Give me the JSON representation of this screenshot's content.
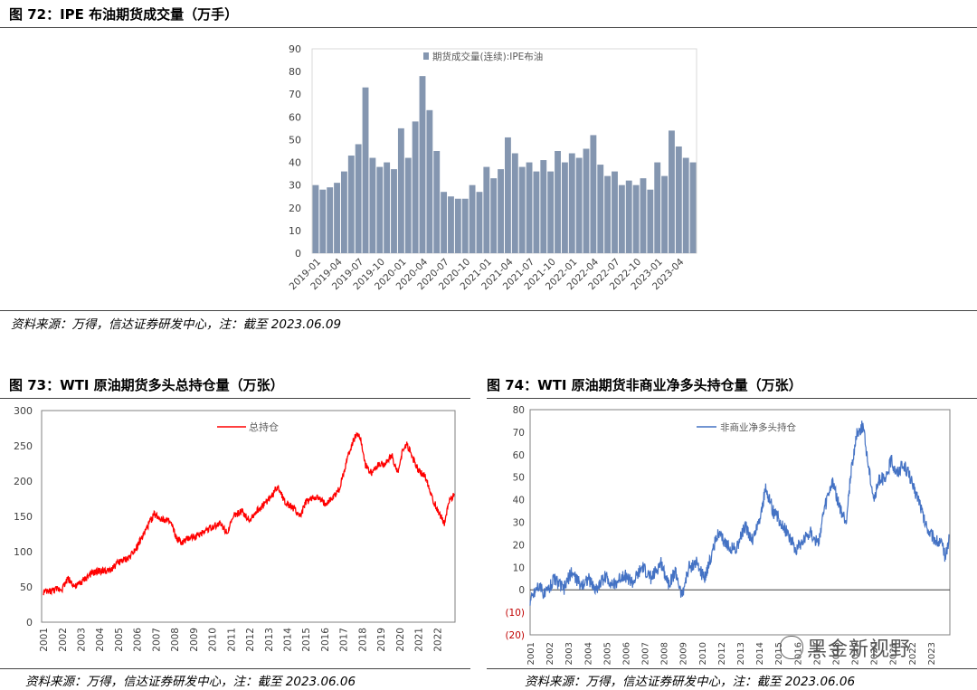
{
  "figures": {
    "fig72": {
      "title": "图 72：IPE 布油期货成交量（万手）",
      "source": "资料来源：万得，信达证券研发中心，注：截至 2023.06.09"
    },
    "fig73": {
      "title": "图 73：WTI 原油期货多头总持仓量（万张）",
      "source": "资料来源：万得，信达证券研发中心，注：截至 2023.06.06"
    },
    "fig74": {
      "title": "图 74：WTI 原油期货非商业净多头持仓量（万张）",
      "source": "资料来源：万得，信达证券研发中心，注：截至 2023.06.06"
    }
  },
  "watermark": "黑金新视野",
  "colors": {
    "bar": "#8496b0",
    "red": "#ff0000",
    "blue": "#4472c4",
    "neg_tick": "#c00000"
  },
  "chart_data": [
    {
      "id": "fig72",
      "type": "bar",
      "title": "",
      "xlabel": "",
      "ylabel": "",
      "ylim": [
        0,
        90
      ],
      "yticks": [
        0,
        10,
        20,
        30,
        40,
        50,
        60,
        70,
        80,
        90
      ],
      "x_tick_labels": [
        "2019-01",
        "2019-04",
        "2019-07",
        "2019-10",
        "2020-01",
        "2020-04",
        "2020-07",
        "2020-10",
        "2021-01",
        "2021-04",
        "2021-07",
        "2021-10",
        "2022-01",
        "2022-04",
        "2022-07",
        "2022-10",
        "2023-01",
        "2023-04"
      ],
      "legend": "top-center",
      "grid": false,
      "series": [
        {
          "name": "期货成交量(连续):IPE布油",
          "x": [
            "2019-01",
            "2019-02",
            "2019-03",
            "2019-04",
            "2019-05",
            "2019-06",
            "2019-07",
            "2019-08",
            "2019-09",
            "2019-10",
            "2019-11",
            "2019-12",
            "2020-01",
            "2020-02",
            "2020-03",
            "2020-04",
            "2020-05",
            "2020-06",
            "2020-07",
            "2020-08",
            "2020-09",
            "2020-10",
            "2020-11",
            "2020-12",
            "2021-01",
            "2021-02",
            "2021-03",
            "2021-04",
            "2021-05",
            "2021-06",
            "2021-07",
            "2021-08",
            "2021-09",
            "2021-10",
            "2021-11",
            "2021-12",
            "2022-01",
            "2022-02",
            "2022-03",
            "2022-04",
            "2022-05",
            "2022-06",
            "2022-07",
            "2022-08",
            "2022-09",
            "2022-10",
            "2022-11",
            "2022-12",
            "2023-01",
            "2023-02",
            "2023-03",
            "2023-04",
            "2023-05",
            "2023-06"
          ],
          "values": [
            30,
            28,
            29,
            31,
            36,
            43,
            48,
            73,
            42,
            38,
            40,
            37,
            55,
            42,
            58,
            78,
            63,
            45,
            27,
            25,
            24,
            24,
            30,
            27,
            38,
            33,
            37,
            51,
            44,
            38,
            40,
            36,
            41,
            36,
            45,
            40,
            44,
            42,
            46,
            52,
            39,
            34,
            36,
            30,
            32,
            30,
            33,
            28,
            40,
            34,
            54,
            47,
            42,
            40
          ]
        }
      ]
    },
    {
      "id": "fig73",
      "type": "line",
      "title": "",
      "xlabel": "",
      "ylabel": "",
      "ylim": [
        0,
        300
      ],
      "yticks": [
        0,
        50,
        100,
        150,
        200,
        250,
        300
      ],
      "x_tick_labels": [
        "2001",
        "2002",
        "2003",
        "2004",
        "2005",
        "2006",
        "2007",
        "2008",
        "2009",
        "2010",
        "2011",
        "2012",
        "2013",
        "2014",
        "2015",
        "2016",
        "2017",
        "2018",
        "2019",
        "2020",
        "2021",
        "2022"
      ],
      "xlim": [
        2000.9,
        2022.95
      ],
      "legend": "top-center",
      "grid": false,
      "series": [
        {
          "name": "总持仓",
          "x": [
            2001.0,
            2001.5,
            2002.0,
            2002.3,
            2002.7,
            2003.0,
            2003.5,
            2004.0,
            2004.5,
            2005.0,
            2005.5,
            2006.0,
            2006.3,
            2006.6,
            2006.9,
            2007.2,
            2007.5,
            2007.8,
            2008.1,
            2008.4,
            2008.8,
            2009.2,
            2009.6,
            2010.0,
            2010.4,
            2010.8,
            2011.2,
            2011.6,
            2012.0,
            2012.4,
            2012.8,
            2013.2,
            2013.5,
            2013.9,
            2014.3,
            2014.7,
            2015.0,
            2015.5,
            2016.0,
            2016.4,
            2016.8,
            2017.2,
            2017.5,
            2017.7,
            2017.9,
            2018.2,
            2018.5,
            2018.8,
            2019.2,
            2019.6,
            2019.9,
            2020.2,
            2020.4,
            2020.7,
            2021.0,
            2021.4,
            2021.8,
            2022.1,
            2022.4,
            2022.6,
            2022.9
          ],
          "values": [
            42,
            45,
            48,
            62,
            50,
            56,
            68,
            73,
            72,
            85,
            90,
            108,
            122,
            138,
            153,
            148,
            145,
            140,
            118,
            112,
            120,
            122,
            130,
            135,
            140,
            128,
            152,
            157,
            145,
            158,
            168,
            180,
            193,
            170,
            162,
            150,
            170,
            178,
            168,
            175,
            190,
            232,
            255,
            268,
            262,
            220,
            212,
            222,
            225,
            235,
            210,
            248,
            252,
            232,
            215,
            205,
            172,
            155,
            140,
            168,
            182
          ]
        }
      ]
    },
    {
      "id": "fig74",
      "type": "line",
      "title": "",
      "xlabel": "",
      "ylabel": "",
      "ylim": [
        -20,
        80
      ],
      "yticks": [
        80,
        70,
        60,
        50,
        40,
        30,
        20,
        10,
        0,
        -10,
        -20
      ],
      "ytick_labels": [
        "80",
        "70",
        "60",
        "50",
        "40",
        "30",
        "20",
        "10",
        "0",
        "(10)",
        "(20)"
      ],
      "x_tick_labels": [
        "2001",
        "2002",
        "2003",
        "2004",
        "2005",
        "2006",
        "2007",
        "2008",
        "2009",
        "2010",
        "2012",
        "2013",
        "2014",
        "2015",
        "2016",
        "2017",
        "2018",
        "2019",
        "2020",
        "2021",
        "2022",
        "2023"
      ],
      "xlim": [
        2001.0,
        2023.45
      ],
      "legend": "top-center",
      "grid": false,
      "series": [
        {
          "name": "非商业净多头持仓",
          "x": [
            2001.0,
            2001.4,
            2001.8,
            2002.3,
            2002.8,
            2003.2,
            2003.7,
            2004.1,
            2004.5,
            2005.0,
            2005.5,
            2006.0,
            2006.5,
            2007.0,
            2007.5,
            2008.0,
            2008.4,
            2008.8,
            2009.1,
            2009.5,
            2009.9,
            2010.3,
            2010.7,
            2011.0,
            2011.5,
            2012.0,
            2012.5,
            2012.9,
            2013.3,
            2013.6,
            2014.0,
            2014.4,
            2014.8,
            2015.2,
            2015.6,
            2016.0,
            2016.4,
            2016.8,
            2017.2,
            2017.6,
            2017.9,
            2018.2,
            2018.5,
            2018.8,
            2019.1,
            2019.4,
            2019.7,
            2020.0,
            2020.3,
            2020.6,
            2020.9,
            2021.2,
            2021.5,
            2021.8,
            2022.1,
            2022.4,
            2022.7,
            2023.0,
            2023.2,
            2023.4
          ],
          "values": [
            -5,
            2,
            -2,
            5,
            0,
            8,
            2,
            5,
            0,
            6,
            2,
            7,
            3,
            10,
            5,
            12,
            3,
            8,
            -3,
            10,
            12,
            5,
            15,
            25,
            20,
            18,
            28,
            22,
            32,
            45,
            35,
            30,
            25,
            18,
            22,
            26,
            20,
            38,
            48,
            35,
            30,
            55,
            70,
            73,
            55,
            40,
            50,
            48,
            58,
            52,
            55,
            53,
            45,
            40,
            30,
            25,
            22,
            20,
            15,
            22
          ]
        }
      ]
    }
  ]
}
